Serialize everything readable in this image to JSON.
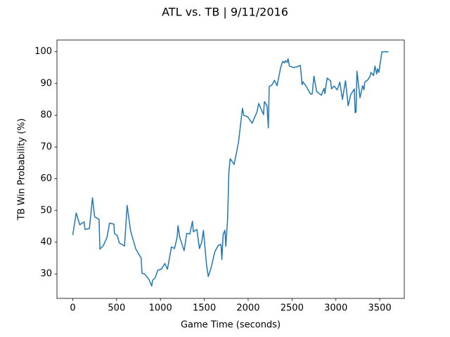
{
  "chart_data": {
    "type": "line",
    "title": "ATL vs. TB | 9/11/2016",
    "x_label": "Game Time (seconds)",
    "y_label": "TB Win Probability (%)",
    "x": [
      0,
      40,
      80,
      130,
      140,
      190,
      225,
      250,
      300,
      310,
      350,
      390,
      420,
      470,
      475,
      510,
      530,
      590,
      600,
      620,
      660,
      720,
      780,
      790,
      820,
      870,
      900,
      910,
      940,
      970,
      1010,
      1050,
      1080,
      1125,
      1160,
      1190,
      1200,
      1220,
      1270,
      1300,
      1335,
      1365,
      1375,
      1415,
      1445,
      1470,
      1490,
      1525,
      1545,
      1575,
      1620,
      1660,
      1690,
      1700,
      1715,
      1735,
      1745,
      1765,
      1780,
      1795,
      1840,
      1890,
      1935,
      1950,
      1995,
      2045,
      2100,
      2120,
      2175,
      2185,
      2215,
      2230,
      2240,
      2270,
      2300,
      2330,
      2370,
      2395,
      2415,
      2425,
      2445,
      2455,
      2470,
      2520,
      2560,
      2595,
      2615,
      2625,
      2665,
      2710,
      2730,
      2750,
      2780,
      2835,
      2865,
      2875,
      2900,
      2940,
      2950,
      2980,
      3015,
      3045,
      3075,
      3110,
      3140,
      3170,
      3210,
      3220,
      3230,
      3240,
      3275,
      3305,
      3320,
      3330,
      3360,
      3390,
      3400,
      3430,
      3445,
      3465,
      3475,
      3490,
      3525,
      3600
    ],
    "values": [
      42.3,
      49.2,
      45.5,
      46.4,
      44,
      44.3,
      54,
      48,
      47.2,
      37.8,
      39,
      41.5,
      46,
      45.7,
      42.8,
      42,
      39.8,
      38.8,
      43,
      51.6,
      43.5,
      37.8,
      35,
      30.2,
      30,
      28.2,
      26.2,
      28,
      28.8,
      31.2,
      31.5,
      33.3,
      31.5,
      38.5,
      38,
      41.5,
      45.2,
      41.5,
      37.3,
      42.8,
      42.6,
      46.6,
      43.3,
      44,
      38,
      40,
      43.7,
      33,
      29.2,
      31.7,
      37,
      39,
      39.3,
      34.5,
      42.5,
      43.8,
      38.7,
      47,
      62,
      66.3,
      64.5,
      71.5,
      82.2,
      80,
      79.5,
      77.5,
      81,
      83.7,
      80.2,
      84.3,
      83,
      76,
      89.1,
      89.5,
      91,
      89.3,
      95,
      97,
      96.5,
      97.2,
      96.7,
      97.8,
      95.5,
      95,
      95.3,
      95.7,
      89.6,
      90.5,
      89,
      86.7,
      86.7,
      92.3,
      87.5,
      86.3,
      88.5,
      86.8,
      91.7,
      90.8,
      88.3,
      89.2,
      88,
      90.4,
      85,
      90.9,
      83,
      86.5,
      88.3,
      80.8,
      81,
      93.9,
      85.5,
      89.3,
      88,
      90.5,
      91,
      92.3,
      93.5,
      92.5,
      95.5,
      93,
      94.6,
      93.5,
      100,
      100
    ],
    "color": "#1f77b4",
    "xlim": [
      -180,
      3780
    ],
    "ylim": [
      22.3,
      103.7
    ],
    "xticks": [
      0,
      500,
      1000,
      1500,
      2000,
      2500,
      3000,
      3500
    ],
    "yticks": [
      30,
      40,
      50,
      60,
      70,
      80,
      90,
      100
    ]
  }
}
